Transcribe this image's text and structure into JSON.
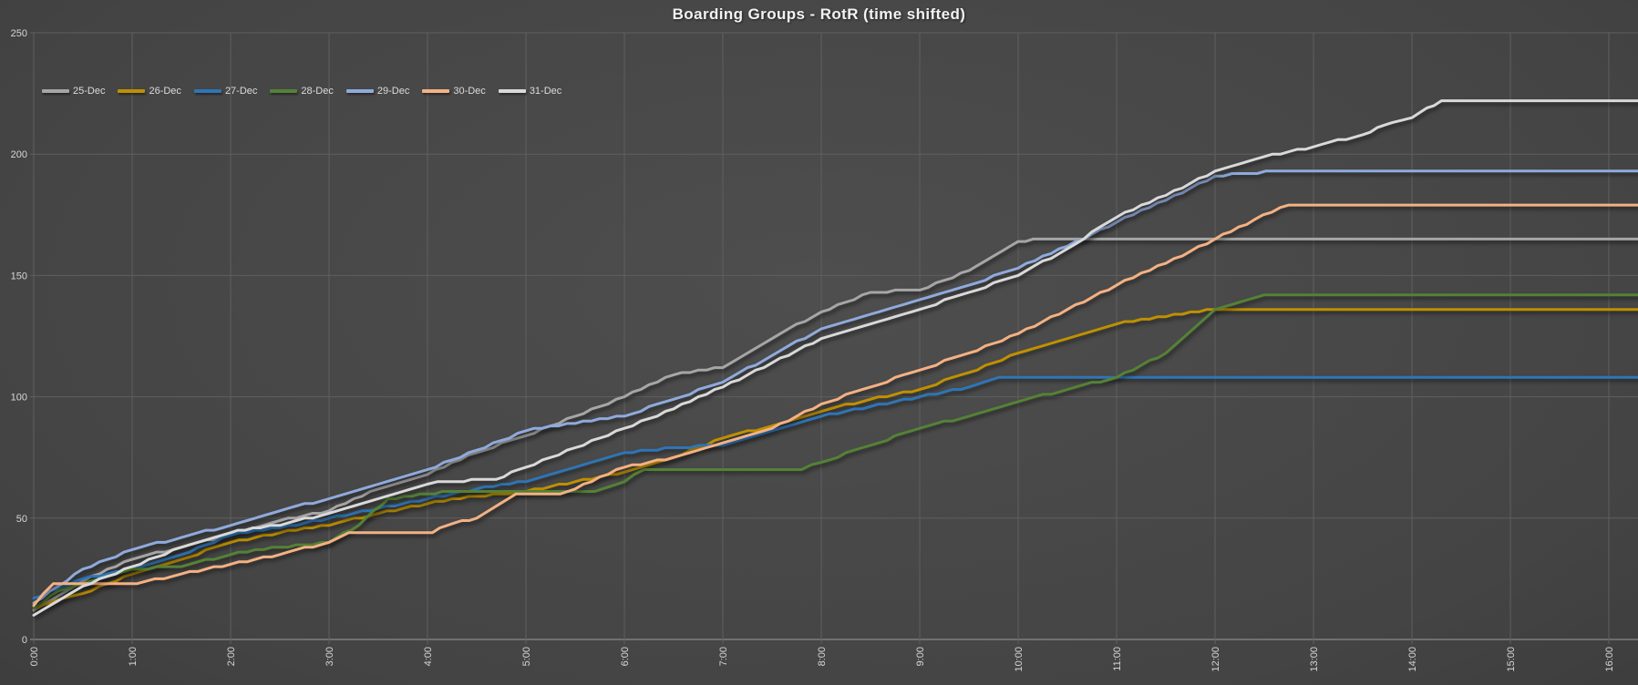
{
  "colors": {
    "background_center": "#4e4e4e",
    "background_edge": "#2c2c2c",
    "gridline": "#5f5f5f",
    "axis_line": "#9b9b9b",
    "tick_label": "#d6d6d6",
    "title": "#f2f2f2"
  },
  "chart_data": {
    "type": "line",
    "title": "Boarding Groups - RotR (time shifted)",
    "xlabel": "",
    "ylabel": "",
    "grid": true,
    "legend_position": "top-left",
    "x_axis": {
      "tick_labels": [
        "0:00",
        "1:00",
        "2:00",
        "3:00",
        "4:00",
        "5:00",
        "6:00",
        "7:00",
        "8:00",
        "9:00",
        "10:00",
        "11:00",
        "12:00",
        "13:00",
        "14:00",
        "15:00",
        "16:00"
      ],
      "tick_hours": [
        0,
        1,
        2,
        3,
        4,
        5,
        6,
        7,
        8,
        9,
        10,
        11,
        12,
        13,
        14,
        15,
        16
      ],
      "min_hour": 0,
      "max_hour": 16.3
    },
    "y_axis": {
      "tick_labels": [
        "0",
        "50",
        "100",
        "150",
        "200",
        "250"
      ],
      "ticks": [
        0,
        50,
        100,
        150,
        200,
        250
      ],
      "min": 0,
      "max": 250
    },
    "series": [
      {
        "name": "25-Dec",
        "color": "#a6a6a6",
        "final_value": 165,
        "points": [
          [
            0,
            12
          ],
          [
            0.25,
            18
          ],
          [
            0.5,
            24
          ],
          [
            1,
            33
          ],
          [
            1.5,
            38
          ],
          [
            2,
            43
          ],
          [
            2.5,
            49
          ],
          [
            3,
            53
          ],
          [
            3.5,
            62
          ],
          [
            4,
            68
          ],
          [
            4.5,
            77
          ],
          [
            5,
            84
          ],
          [
            5.5,
            92
          ],
          [
            6,
            100
          ],
          [
            6.5,
            109
          ],
          [
            7,
            112
          ],
          [
            7.5,
            124
          ],
          [
            8,
            135
          ],
          [
            8.5,
            143
          ],
          [
            9,
            144
          ],
          [
            9.5,
            152
          ],
          [
            10,
            164
          ],
          [
            10.3,
            165
          ],
          [
            16.3,
            165
          ]
        ]
      },
      {
        "name": "26-Dec",
        "color": "#bf9000",
        "final_value": 136,
        "points": [
          [
            0,
            13
          ],
          [
            0.3,
            17
          ],
          [
            0.5,
            19
          ],
          [
            1,
            27
          ],
          [
            1.5,
            33
          ],
          [
            2,
            40
          ],
          [
            2.5,
            44
          ],
          [
            3,
            47
          ],
          [
            3.5,
            52
          ],
          [
            4,
            56
          ],
          [
            4.5,
            59
          ],
          [
            5,
            61
          ],
          [
            5.5,
            65
          ],
          [
            6,
            69
          ],
          [
            6.5,
            75
          ],
          [
            7,
            83
          ],
          [
            7.5,
            88
          ],
          [
            8,
            94
          ],
          [
            8.5,
            99
          ],
          [
            9,
            103
          ],
          [
            9.5,
            110
          ],
          [
            10,
            118
          ],
          [
            10.5,
            124
          ],
          [
            11,
            130
          ],
          [
            11.5,
            133
          ],
          [
            12,
            136
          ],
          [
            16.3,
            136
          ]
        ]
      },
      {
        "name": "27-Dec",
        "color": "#2e75b6",
        "final_value": 108,
        "points": [
          [
            0,
            17
          ],
          [
            0.5,
            25
          ],
          [
            1,
            29
          ],
          [
            1.5,
            35
          ],
          [
            2,
            43
          ],
          [
            2.5,
            46
          ],
          [
            3,
            50
          ],
          [
            3.5,
            54
          ],
          [
            4,
            58
          ],
          [
            4.5,
            62
          ],
          [
            5,
            65
          ],
          [
            5.5,
            71
          ],
          [
            6,
            77
          ],
          [
            6.5,
            79
          ],
          [
            7,
            80
          ],
          [
            7.5,
            86
          ],
          [
            8,
            92
          ],
          [
            8.5,
            96
          ],
          [
            9,
            100
          ],
          [
            9.5,
            104
          ],
          [
            9.8,
            108
          ],
          [
            16.3,
            108
          ]
        ]
      },
      {
        "name": "28-Dec",
        "color": "#548235",
        "final_value": 142,
        "points": [
          [
            0,
            13
          ],
          [
            0.25,
            20
          ],
          [
            0.5,
            23
          ],
          [
            1,
            29
          ],
          [
            1.5,
            30
          ],
          [
            2,
            35
          ],
          [
            2.5,
            38
          ],
          [
            3,
            40
          ],
          [
            3.3,
            47
          ],
          [
            3.6,
            58
          ],
          [
            4,
            60
          ],
          [
            4.3,
            61
          ],
          [
            5.7,
            61
          ],
          [
            6,
            65
          ],
          [
            6.2,
            70
          ],
          [
            7.8,
            70
          ],
          [
            8,
            73
          ],
          [
            8.5,
            80
          ],
          [
            9,
            87
          ],
          [
            9.5,
            92
          ],
          [
            10,
            98
          ],
          [
            10.5,
            103
          ],
          [
            11,
            108
          ],
          [
            11.5,
            118
          ],
          [
            12,
            136
          ],
          [
            12.5,
            142
          ],
          [
            16.3,
            142
          ]
        ]
      },
      {
        "name": "29-Dec",
        "color": "#8faadc",
        "final_value": 193,
        "points": [
          [
            0,
            15
          ],
          [
            0.5,
            29
          ],
          [
            1,
            37
          ],
          [
            1.5,
            42
          ],
          [
            2,
            47
          ],
          [
            2.5,
            53
          ],
          [
            3,
            58
          ],
          [
            3.5,
            64
          ],
          [
            4,
            70
          ],
          [
            4.5,
            78
          ],
          [
            5,
            86
          ],
          [
            5.5,
            89
          ],
          [
            6,
            92
          ],
          [
            6.5,
            99
          ],
          [
            7,
            106
          ],
          [
            7.5,
            117
          ],
          [
            8,
            128
          ],
          [
            8.5,
            134
          ],
          [
            9,
            140
          ],
          [
            9.5,
            146
          ],
          [
            10,
            153
          ],
          [
            10.5,
            162
          ],
          [
            11,
            172
          ],
          [
            11.5,
            181
          ],
          [
            12,
            191
          ],
          [
            12.6,
            193
          ],
          [
            16.3,
            193
          ]
        ]
      },
      {
        "name": "30-Dec",
        "color": "#f4b183",
        "final_value": 179,
        "points": [
          [
            0,
            14
          ],
          [
            0.2,
            23
          ],
          [
            1.05,
            23
          ],
          [
            1.5,
            27
          ],
          [
            2,
            31
          ],
          [
            2.5,
            35
          ],
          [
            3,
            40
          ],
          [
            3.2,
            44
          ],
          [
            4.05,
            44
          ],
          [
            4.2,
            47
          ],
          [
            4.5,
            50
          ],
          [
            4.9,
            60
          ],
          [
            5.35,
            60
          ],
          [
            5.5,
            62
          ],
          [
            6,
            71
          ],
          [
            6.5,
            75
          ],
          [
            7,
            81
          ],
          [
            7.5,
            87
          ],
          [
            8,
            97
          ],
          [
            8.5,
            104
          ],
          [
            9,
            111
          ],
          [
            9.5,
            118
          ],
          [
            10,
            126
          ],
          [
            10.5,
            136
          ],
          [
            11,
            146
          ],
          [
            11.5,
            155
          ],
          [
            12,
            165
          ],
          [
            12.4,
            173
          ],
          [
            12.75,
            179
          ],
          [
            16.3,
            179
          ]
        ]
      },
      {
        "name": "31-Dec",
        "color": "#d9d9d9",
        "final_value": 222,
        "points": [
          [
            0,
            10
          ],
          [
            0.5,
            22
          ],
          [
            1,
            30
          ],
          [
            1.5,
            38
          ],
          [
            2,
            44
          ],
          [
            2.3,
            46
          ],
          [
            2.5,
            47
          ],
          [
            3,
            52
          ],
          [
            3.5,
            58
          ],
          [
            4,
            64
          ],
          [
            4.2,
            65
          ],
          [
            4.7,
            66
          ],
          [
            5,
            71
          ],
          [
            5.5,
            79
          ],
          [
            6,
            87
          ],
          [
            6.5,
            95
          ],
          [
            7,
            104
          ],
          [
            7.5,
            114
          ],
          [
            8,
            124
          ],
          [
            8.5,
            130
          ],
          [
            9,
            136
          ],
          [
            9.5,
            143
          ],
          [
            10,
            150
          ],
          [
            10.5,
            161
          ],
          [
            11,
            174
          ],
          [
            11.5,
            183
          ],
          [
            12,
            193
          ],
          [
            12.5,
            199
          ],
          [
            13,
            203
          ],
          [
            13.5,
            208
          ],
          [
            13.8,
            213
          ],
          [
            14,
            215
          ],
          [
            14.3,
            222
          ],
          [
            16.3,
            222
          ]
        ]
      }
    ]
  }
}
